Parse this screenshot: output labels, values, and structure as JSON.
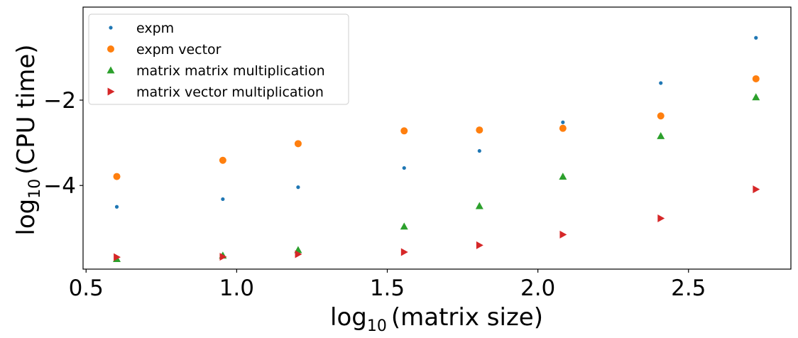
{
  "chart_data": {
    "type": "scatter",
    "xlabel": {
      "prefix": "log",
      "sub": "10",
      "rest": "(matrix size)"
    },
    "ylabel": {
      "prefix": "log",
      "sub": "10",
      "rest": "(CPU time)"
    },
    "xlim": [
      0.49,
      2.84
    ],
    "ylim": [
      -5.96,
      0.18
    ],
    "xticks": [
      0.5,
      1.0,
      1.5,
      2.0,
      2.5
    ],
    "xtick_labels": [
      "0.5",
      "1.0",
      "1.5",
      "2.0",
      "2.5"
    ],
    "yticks": [
      -2,
      -4
    ],
    "ytick_labels": [
      "−2",
      "−4"
    ],
    "grid": false,
    "legend_position": "upper-left",
    "x": [
      0.602,
      0.954,
      1.204,
      1.556,
      1.806,
      2.083,
      2.408,
      2.724
    ],
    "series": [
      {
        "name": "expm",
        "marker": "point",
        "color": "#1f77b4",
        "values": [
          -4.5,
          -4.32,
          -4.04,
          -3.59,
          -3.19,
          -2.52,
          -1.6,
          -0.54
        ]
      },
      {
        "name": "expm vector",
        "marker": "circle",
        "color": "#ff7f0e",
        "values": [
          -3.79,
          -3.41,
          -3.02,
          -2.72,
          -2.7,
          -2.66,
          -2.37,
          -1.5
        ]
      },
      {
        "name": "matrix matrix multiplication",
        "marker": "triangle-up",
        "color": "#2ca02c",
        "values": [
          -5.72,
          -5.64,
          -5.51,
          -4.96,
          -4.48,
          -3.79,
          -2.84,
          -1.93
        ]
      },
      {
        "name": "matrix vector multiplication",
        "marker": "triangle-right",
        "color": "#d62728",
        "values": [
          -5.68,
          -5.67,
          -5.61,
          -5.56,
          -5.4,
          -5.15,
          -4.77,
          -4.09
        ]
      }
    ]
  }
}
